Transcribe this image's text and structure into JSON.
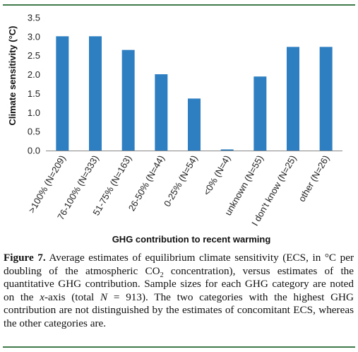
{
  "chart_data": {
    "type": "bar",
    "categories": [
      ">100% (N=209)",
      "76-100% (N=333)",
      "51-75% (N=163)",
      "26-50% (N=44)",
      "0-25% (N=54)",
      "<0% (N=4)",
      "unknown (N=55)",
      "I don't know (N=25)",
      "other (N=26)"
    ],
    "values": [
      3.01,
      3.01,
      2.65,
      2.01,
      1.37,
      0.03,
      1.95,
      2.73,
      2.73
    ],
    "ylabel": "Climate sensitivity (°C)",
    "xlabel": "GHG contribution to recent warming",
    "ylim": [
      0,
      3.5
    ],
    "yticks": [
      "0.0",
      "0.5",
      "1.0",
      "1.5",
      "2.0",
      "2.5",
      "3.0",
      "3.5"
    ],
    "bar_color": "#2e7fc2",
    "grid": false
  },
  "caption": {
    "figure_label": "Figure 7.",
    "seg1": " Average estimates of equilibrium climate sensitivity (ECS, in °C per doubling of the atmospheric CO",
    "sub_2": "2",
    "seg2": " concentration), versus estimates of the quantitative GHG contribution. Sample sizes for each GHG category are noted on the ",
    "x_axis_italic": "x",
    "seg3": "-axis (total ",
    "n_italic": "N",
    "seg4": " = 913). The two categories with the highest GHG contribution are not distinguished by the estimates of concomitant ECS, whereas the other categories are."
  },
  "colors": {
    "rule": "#3e7a4a",
    "bar": "#2e7fc2"
  }
}
